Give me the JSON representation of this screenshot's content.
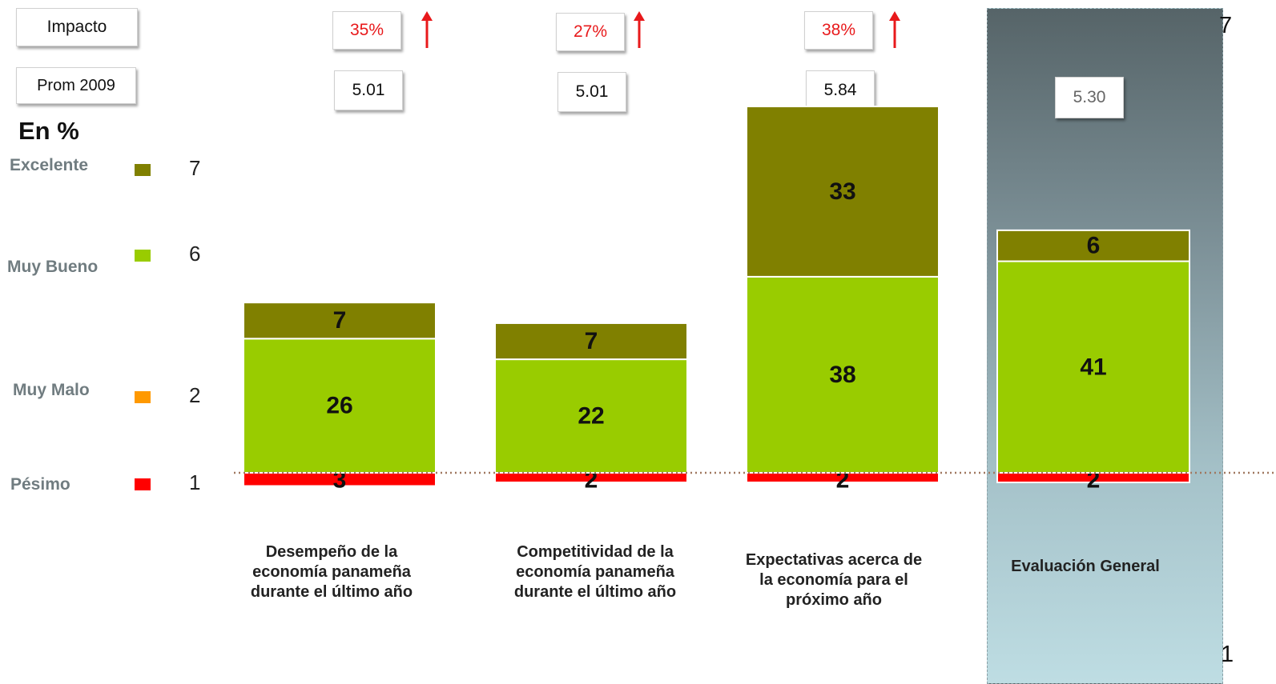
{
  "header": {
    "impact_label": "Impacto",
    "prom_label": "Prom 2009",
    "unit_label": "En %"
  },
  "legend": [
    {
      "label": "Excelente",
      "value": "7",
      "color": "#808000"
    },
    {
      "label": "Muy Bueno",
      "value": "6",
      "color": "#99cc00"
    },
    {
      "label": "Muy Malo",
      "value": "2",
      "color": "#ff9900"
    },
    {
      "label": "Pésimo",
      "value": "1",
      "color": "#ff0000"
    }
  ],
  "scale": {
    "top": "7",
    "bottom": "1"
  },
  "groups": [
    {
      "impact": "35%",
      "prom": "5.01",
      "label": "Desempeño de la economía panameña durante el último año"
    },
    {
      "impact": "27%",
      "prom": "5.01",
      "label": "Competitividad de la economía panameña durante el último año"
    },
    {
      "impact": "38%",
      "prom": "5.84",
      "label": "Expectativas acerca de la economía para el próximo año"
    },
    {
      "impact": "",
      "prom": "5.30",
      "label": "Evaluación General"
    }
  ],
  "chart_data": {
    "type": "bar",
    "stacked": true,
    "baseline": "diverging",
    "categories": [
      "Desempeño de la economía panameña durante el último año",
      "Competitividad de la economía panameña durante el último año",
      "Expectativas acerca de la economía para el próximo año",
      "Evaluación General"
    ],
    "series": [
      {
        "name": "Pésimo",
        "color": "#ff0000",
        "direction": "negative",
        "values": [
          3,
          2,
          2,
          2
        ]
      },
      {
        "name": "Muy Bueno",
        "color": "#99cc00",
        "direction": "positive",
        "values": [
          26,
          22,
          38,
          41
        ]
      },
      {
        "name": "Excelente",
        "color": "#808000",
        "direction": "positive",
        "values": [
          7,
          7,
          33,
          6
        ]
      }
    ],
    "title": "",
    "ylabel": "En %",
    "grid": false,
    "legend_position": "left"
  }
}
